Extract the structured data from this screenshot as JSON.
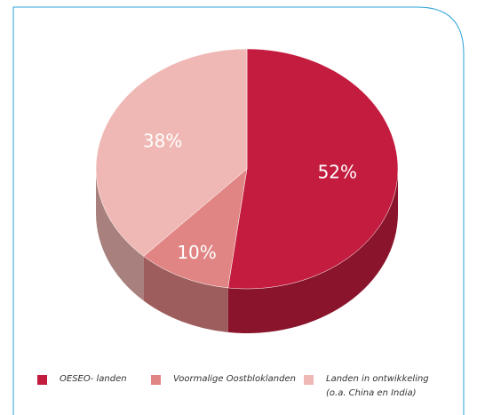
{
  "chart_data": {
    "type": "pie",
    "categories": [
      "OESEO- landen",
      "Voormalige Oostbloklanden",
      "Landen in ontwikkeling\n(o.a. China en India)"
    ],
    "values": [
      52,
      10,
      38
    ],
    "value_labels": [
      "52%",
      "10%",
      "38%"
    ],
    "colors": [
      "#c41c3f",
      "#e08583",
      "#f0b8b4"
    ],
    "legend": "bottom"
  }
}
